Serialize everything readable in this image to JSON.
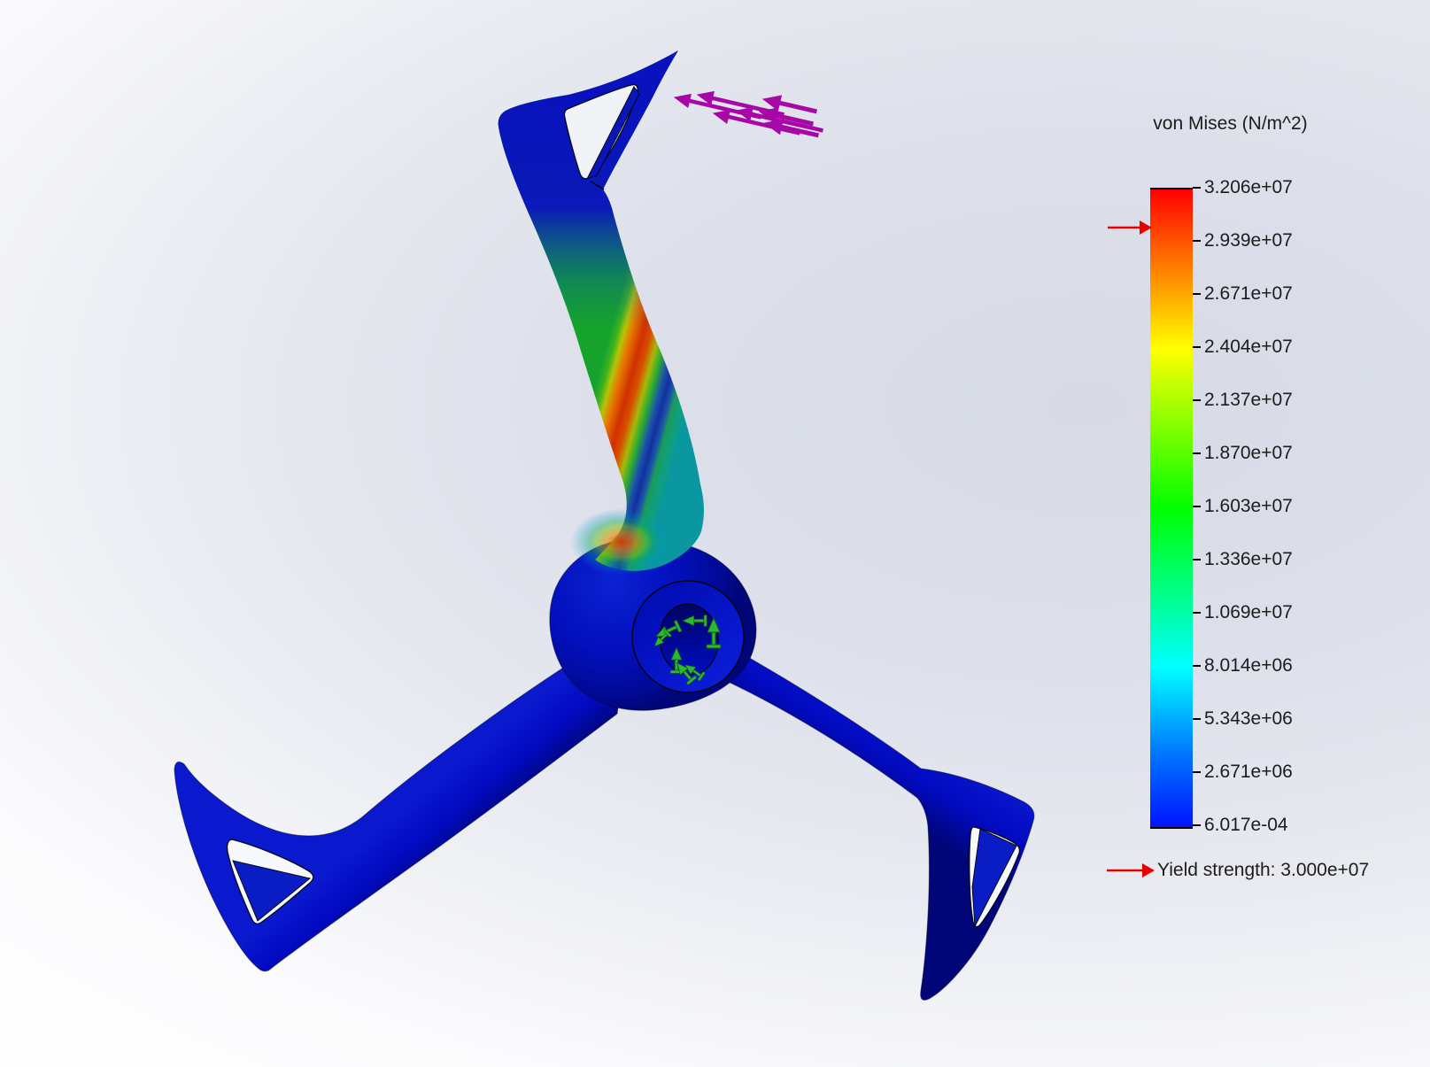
{
  "legend": {
    "title": "von Mises (N/m^2)",
    "tick_values": [
      "3.206e+07",
      "2.939e+07",
      "2.671e+07",
      "2.404e+07",
      "2.137e+07",
      "1.870e+07",
      "1.603e+07",
      "1.336e+07",
      "1.069e+07",
      "8.014e+06",
      "5.343e+06",
      "2.671e+06",
      "6.017e-04"
    ],
    "yield_label": "Yield strength: 3.000e+07",
    "colorbar_stops": [
      "#ff0000",
      "#ff8000",
      "#ffff00",
      "#80ff00",
      "#00ff00",
      "#00ff80",
      "#00ffff",
      "#0080ff",
      "#0014ff"
    ],
    "yield_arrow_color": "#e80000",
    "text_color": "#1c1c1c"
  },
  "model": {
    "part_color": "#0009c0",
    "hot_streak_colors": [
      "#2db52d",
      "#e87800",
      "#d03000"
    ],
    "load_arrows": {
      "color": "#a807a8",
      "count": 7
    },
    "fixture_arrows": {
      "color": "#2db82d",
      "count": 7
    }
  },
  "canvas": {
    "background_tint": "#d7dae5",
    "background_base": "#ffffff"
  }
}
